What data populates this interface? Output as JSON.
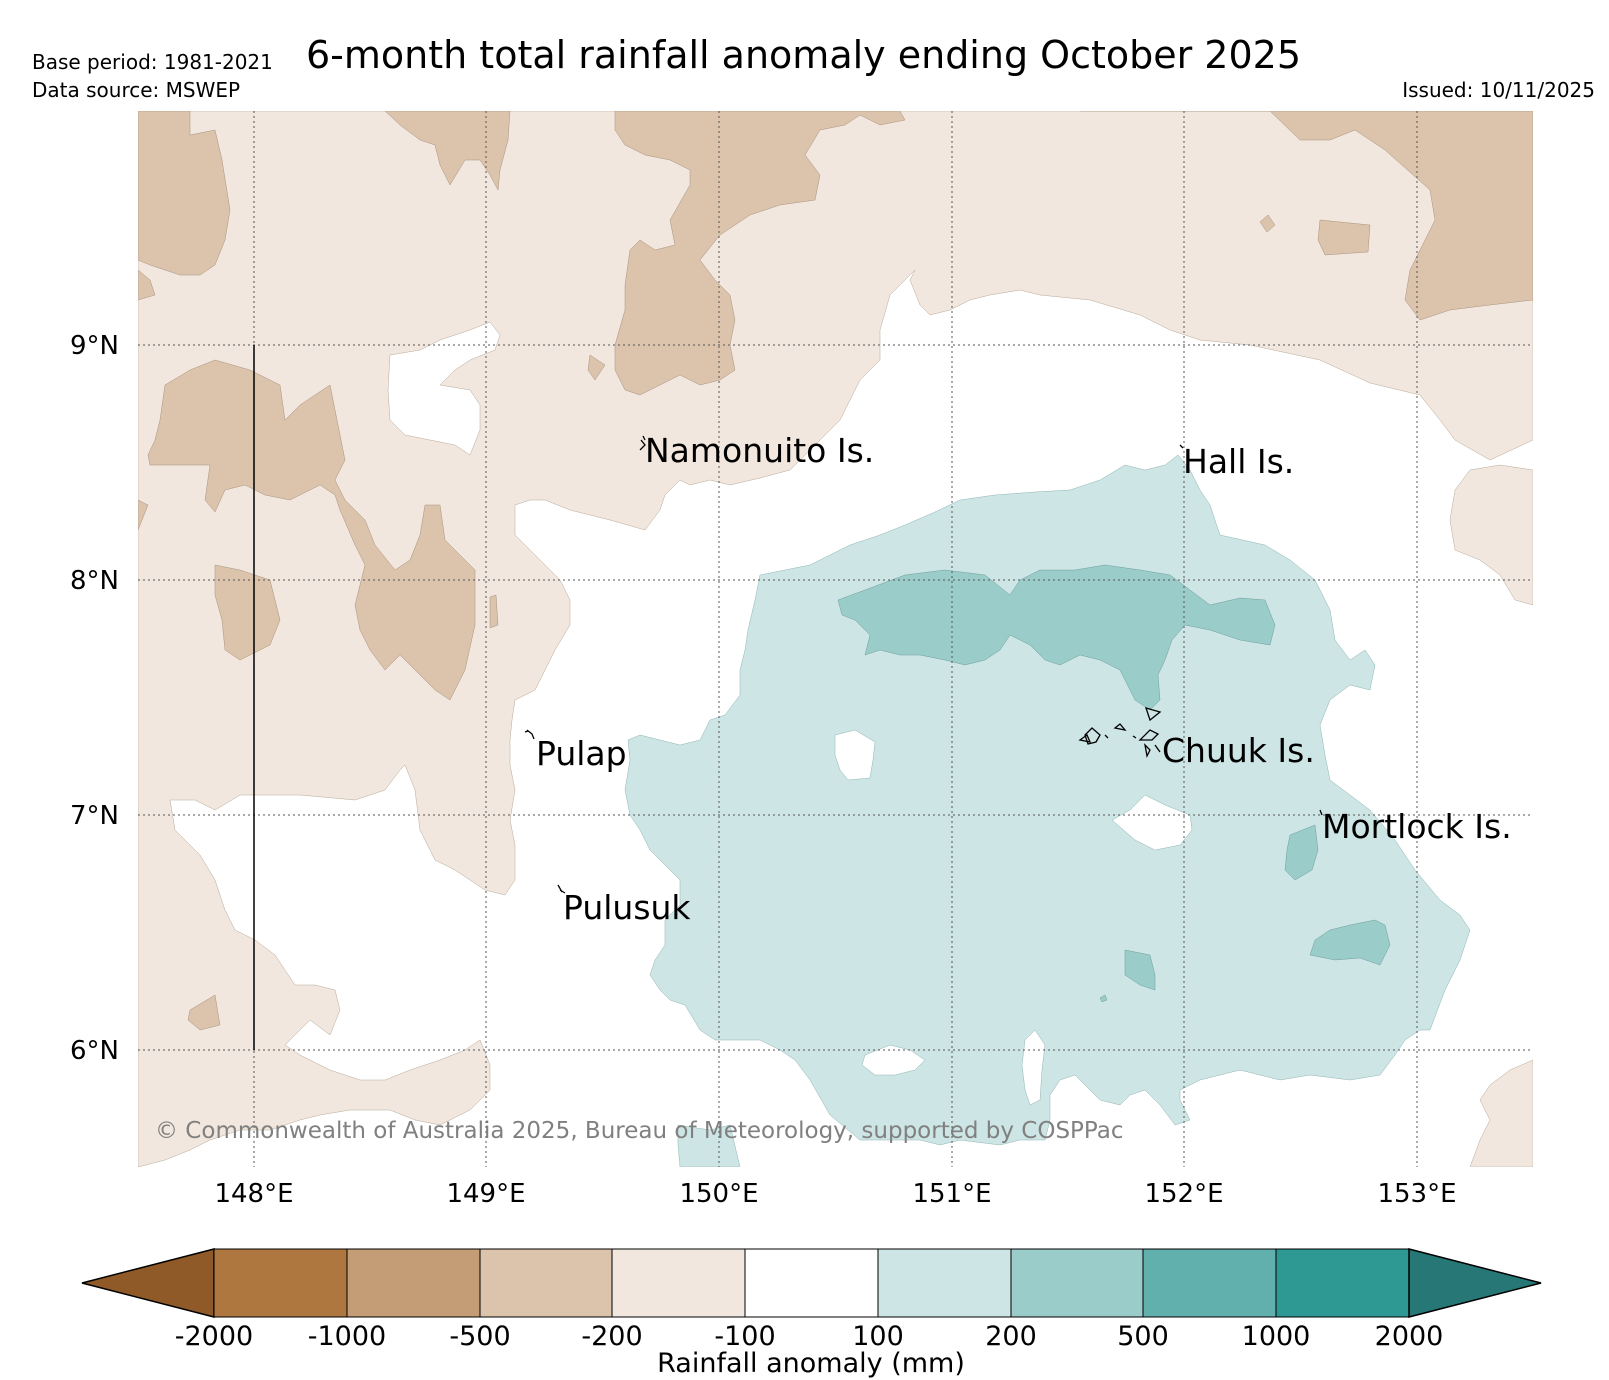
{
  "header": {
    "base_period": "Base period: 1981-2021",
    "data_source": "Data source: MSWEP",
    "title": "6-month total rainfall anomaly ending October 2025",
    "issued": "Issued: 10/11/2025"
  },
  "map": {
    "lon_range": [
      147.5,
      153.5
    ],
    "lat_range": [
      5.5,
      10.0
    ],
    "lat_labels": [
      "9°N",
      "8°N",
      "7°N",
      "6°N"
    ],
    "lon_labels": [
      "148°E",
      "149°E",
      "150°E",
      "151°E",
      "152°E",
      "153°E"
    ],
    "places": [
      "Namonuito Is.",
      "Hall Is.",
      "Pulap",
      "Chuuk Is.",
      "Mortlock Is.",
      "Pulusuk"
    ],
    "copyright": "© Commonwealth of Australia 2025, Bureau of Meteorology, supported by COSPPac"
  },
  "colorbar": {
    "label": "Rainfall anomaly (mm)",
    "ticks": [
      "-2000",
      "-1000",
      "-500",
      "-200",
      "-100",
      "100",
      "200",
      "500",
      "1000",
      "2000"
    ],
    "colors": {
      "below_-2000": "#8f5a28",
      "-2000_-1000": "#ad773f",
      "-1000_-500": "#c49c75",
      "-500_-200": "#dbc3ac",
      "-200_-100": "#f1e7de",
      "-100_100": "#ffffff",
      "100_200": "#cde5e4",
      "200_500": "#9accca",
      "500_1000": "#62b0ae",
      "1000_2000": "#2e9893",
      "above_2000": "#267775"
    }
  }
}
